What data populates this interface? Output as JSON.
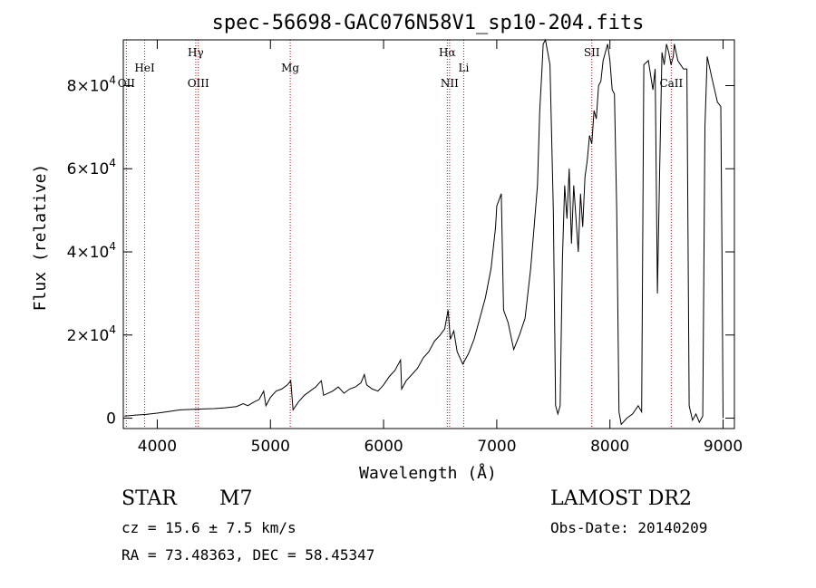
{
  "chart_data": {
    "type": "line",
    "title": "spec-56698-GAC076N58V1_sp10-204.fits",
    "xlabel": "Wavelength (Å)",
    "ylabel": "Flux (relative)",
    "xlim": [
      3700,
      9100
    ],
    "ylim": [
      -2500,
      91000
    ],
    "x_ticks": [
      4000,
      5000,
      6000,
      7000,
      8000,
      9000
    ],
    "y_ticks": [
      {
        "value": 0,
        "base": "0",
        "exp": ""
      },
      {
        "value": 20000,
        "base": "2×10",
        "exp": "4"
      },
      {
        "value": 40000,
        "base": "4×10",
        "exp": "4"
      },
      {
        "value": 60000,
        "base": "6×10",
        "exp": "4"
      },
      {
        "value": 80000,
        "base": "8×10",
        "exp": "4"
      }
    ],
    "grid": false,
    "line_colors": {
      "spectrum": "#000000",
      "marker": "#cc0000"
    },
    "lines": [
      {
        "label": "OII",
        "x": 3727,
        "row": 3
      },
      {
        "label": "HeI",
        "x": 3889,
        "row": 2
      },
      {
        "label": "Hγ",
        "x": 4340,
        "row": 1
      },
      {
        "label": "OIII",
        "x": 4363,
        "row": 3
      },
      {
        "label": "Mg",
        "x": 5175,
        "row": 2
      },
      {
        "label": "Hα",
        "x": 6563,
        "row": 1
      },
      {
        "label": "NII",
        "x": 6583,
        "row": 3
      },
      {
        "label": "Li",
        "x": 6708,
        "row": 2
      },
      {
        "label": "SII",
        "x": 7840,
        "row": 1
      },
      {
        "label": "CaII",
        "x": 8542,
        "row": 3
      }
    ],
    "spectrum": [
      [
        3710,
        500
      ],
      [
        3800,
        700
      ],
      [
        3900,
        900
      ],
      [
        4000,
        1200
      ],
      [
        4100,
        1600
      ],
      [
        4200,
        2000
      ],
      [
        4300,
        2100
      ],
      [
        4400,
        2200
      ],
      [
        4500,
        2300
      ],
      [
        4600,
        2500
      ],
      [
        4700,
        2800
      ],
      [
        4760,
        3500
      ],
      [
        4800,
        3000
      ],
      [
        4850,
        3800
      ],
      [
        4900,
        4500
      ],
      [
        4940,
        6500
      ],
      [
        4960,
        3000
      ],
      [
        5000,
        5000
      ],
      [
        5050,
        6500
      ],
      [
        5100,
        7000
      ],
      [
        5150,
        8000
      ],
      [
        5180,
        9000
      ],
      [
        5200,
        2000
      ],
      [
        5250,
        4000
      ],
      [
        5300,
        5500
      ],
      [
        5350,
        6500
      ],
      [
        5400,
        7500
      ],
      [
        5450,
        9000
      ],
      [
        5470,
        5500
      ],
      [
        5550,
        6500
      ],
      [
        5600,
        7500
      ],
      [
        5650,
        6000
      ],
      [
        5700,
        7000
      ],
      [
        5750,
        7500
      ],
      [
        5800,
        8500
      ],
      [
        5830,
        10500
      ],
      [
        5850,
        8000
      ],
      [
        5900,
        7000
      ],
      [
        5950,
        6500
      ],
      [
        6000,
        8000
      ],
      [
        6050,
        10000
      ],
      [
        6100,
        11500
      ],
      [
        6150,
        14000
      ],
      [
        6160,
        7000
      ],
      [
        6200,
        9000
      ],
      [
        6250,
        10500
      ],
      [
        6300,
        12000
      ],
      [
        6350,
        14500
      ],
      [
        6400,
        16000
      ],
      [
        6450,
        18500
      ],
      [
        6500,
        20000
      ],
      [
        6540,
        21500
      ],
      [
        6570,
        26000
      ],
      [
        6590,
        19000
      ],
      [
        6620,
        21000
      ],
      [
        6650,
        16000
      ],
      [
        6700,
        13000
      ],
      [
        6750,
        15500
      ],
      [
        6800,
        19000
      ],
      [
        6850,
        24000
      ],
      [
        6900,
        29000
      ],
      [
        6950,
        36000
      ],
      [
        6990,
        46000
      ],
      [
        7000,
        51000
      ],
      [
        7040,
        54000
      ],
      [
        7060,
        26000
      ],
      [
        7100,
        23000
      ],
      [
        7150,
        16500
      ],
      [
        7200,
        20000
      ],
      [
        7250,
        24000
      ],
      [
        7300,
        36000
      ],
      [
        7330,
        46000
      ],
      [
        7360,
        56000
      ],
      [
        7380,
        74000
      ],
      [
        7400,
        84000
      ],
      [
        7410,
        90000
      ],
      [
        7430,
        91000
      ],
      [
        7470,
        85000
      ],
      [
        7500,
        50000
      ],
      [
        7520,
        3000
      ],
      [
        7540,
        1000
      ],
      [
        7560,
        3000
      ],
      [
        7580,
        38000
      ],
      [
        7600,
        56000
      ],
      [
        7620,
        48000
      ],
      [
        7640,
        60000
      ],
      [
        7660,
        42000
      ],
      [
        7680,
        56000
      ],
      [
        7700,
        48000
      ],
      [
        7720,
        40000
      ],
      [
        7740,
        54000
      ],
      [
        7760,
        46000
      ],
      [
        7780,
        58000
      ],
      [
        7800,
        62000
      ],
      [
        7820,
        68000
      ],
      [
        7840,
        66000
      ],
      [
        7860,
        74000
      ],
      [
        7880,
        72000
      ],
      [
        7900,
        80000
      ],
      [
        7920,
        81000
      ],
      [
        7940,
        86000
      ],
      [
        7960,
        88000
      ],
      [
        7980,
        90000
      ],
      [
        8000,
        86000
      ],
      [
        8020,
        79000
      ],
      [
        8040,
        78000
      ],
      [
        8060,
        50000
      ],
      [
        8080,
        1500
      ],
      [
        8100,
        -1500
      ],
      [
        8150,
        0
      ],
      [
        8200,
        1000
      ],
      [
        8250,
        3000
      ],
      [
        8280,
        1500
      ],
      [
        8300,
        85000
      ],
      [
        8340,
        86000
      ],
      [
        8380,
        79000
      ],
      [
        8400,
        84000
      ],
      [
        8420,
        30000
      ],
      [
        8440,
        60000
      ],
      [
        8460,
        88000
      ],
      [
        8480,
        85000
      ],
      [
        8500,
        90000
      ],
      [
        8520,
        88000
      ],
      [
        8540,
        85000
      ],
      [
        8560,
        87000
      ],
      [
        8570,
        90000
      ],
      [
        8600,
        86000
      ],
      [
        8650,
        84000
      ],
      [
        8680,
        84000
      ],
      [
        8700,
        3000
      ],
      [
        8730,
        -500
      ],
      [
        8760,
        1000
      ],
      [
        8790,
        -1000
      ],
      [
        8820,
        500
      ],
      [
        8840,
        70000
      ],
      [
        8860,
        87000
      ],
      [
        8900,
        82000
      ],
      [
        8950,
        76000
      ],
      [
        8980,
        75000
      ],
      [
        8990,
        40000
      ],
      [
        9000,
        0
      ]
    ]
  },
  "info": {
    "object_type": "STAR",
    "subclass": "M7",
    "survey": "LAMOST DR2",
    "cz": "cz = 15.6 ± 7.5 km/s",
    "obs_date": "Obs-Date: 20140209",
    "radec": "RA =  73.48363, DEC =  58.45347"
  }
}
